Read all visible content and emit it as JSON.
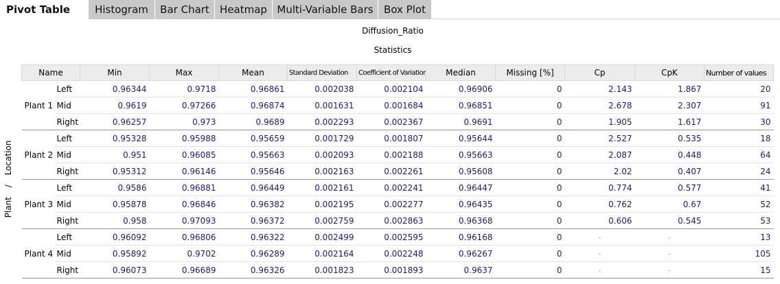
{
  "tabs": [
    "Pivot Table",
    "Histogram",
    "Bar Chart",
    "Heatmap",
    "Multi-Variable Bars",
    "Box Plot"
  ],
  "active_tab": 0,
  "title": "Diffusion_Ratio",
  "subtitle": "Statistics",
  "row_axis_label": "Plant / Location",
  "table": {
    "header": [
      "Name",
      "Min",
      "Max",
      "Mean",
      "Standard Deviation",
      "Coefficient of Variation",
      "Median",
      "Missing [%]",
      "Cp",
      "CpK",
      "Number of values"
    ],
    "groups": [
      {
        "label": "Plant 1",
        "rows": [
          {
            "location": "Left",
            "cells": [
              "0.96344",
              "0.9718",
              "0.96861",
              "0.002038",
              "0.002104",
              "0.96906",
              "0",
              "2.143",
              "1.867",
              "20"
            ]
          },
          {
            "location": "Mid",
            "cells": [
              "0.9619",
              "0.97266",
              "0.96874",
              "0.001631",
              "0.001684",
              "0.96851",
              "0",
              "2.678",
              "2.307",
              "91"
            ]
          },
          {
            "location": "Right",
            "cells": [
              "0.96257",
              "0.973",
              "0.9689",
              "0.002293",
              "0.002367",
              "0.9691",
              "0",
              "1.905",
              "1.617",
              "30"
            ]
          }
        ]
      },
      {
        "label": "Plant 2",
        "rows": [
          {
            "location": "Left",
            "cells": [
              "0.95328",
              "0.95988",
              "0.95659",
              "0.001729",
              "0.001807",
              "0.95644",
              "0",
              "2.527",
              "0.535",
              "18"
            ]
          },
          {
            "location": "Mid",
            "cells": [
              "0.951",
              "0.96085",
              "0.95663",
              "0.002093",
              "0.002188",
              "0.95663",
              "0",
              "2.087",
              "0.448",
              "64"
            ]
          },
          {
            "location": "Right",
            "cells": [
              "0.95312",
              "0.96146",
              "0.95646",
              "0.002163",
              "0.002261",
              "0.95608",
              "0",
              "2.02",
              "0.407",
              "24"
            ]
          }
        ]
      },
      {
        "label": "Plant 3",
        "rows": [
          {
            "location": "Left",
            "cells": [
              "0.9586",
              "0.96881",
              "0.96449",
              "0.002161",
              "0.002241",
              "0.96447",
              "0",
              "0.774",
              "0.577",
              "41"
            ]
          },
          {
            "location": "Mid",
            "cells": [
              "0.95878",
              "0.96846",
              "0.96382",
              "0.002195",
              "0.002277",
              "0.96435",
              "0",
              "0.762",
              "0.67",
              "52"
            ]
          },
          {
            "location": "Right",
            "cells": [
              "0.958",
              "0.97093",
              "0.96372",
              "0.002759",
              "0.002863",
              "0.96368",
              "0",
              "0.606",
              "0.545",
              "53"
            ]
          }
        ]
      },
      {
        "label": "Plant 4",
        "rows": [
          {
            "location": "Left",
            "cells": [
              "0.96092",
              "0.96806",
              "0.96322",
              "0.002499",
              "0.002595",
              "0.96168",
              "0",
              "-",
              "-",
              "13"
            ]
          },
          {
            "location": "Mid",
            "cells": [
              "0.95892",
              "0.9702",
              "0.96289",
              "0.002164",
              "0.002248",
              "0.96267",
              "0",
              "-",
              "-",
              "105"
            ]
          },
          {
            "location": "Right",
            "cells": [
              "0.96073",
              "0.96689",
              "0.96326",
              "0.001823",
              "0.001893",
              "0.9637",
              "0",
              "-",
              "-",
              "15"
            ]
          }
        ]
      }
    ]
  }
}
